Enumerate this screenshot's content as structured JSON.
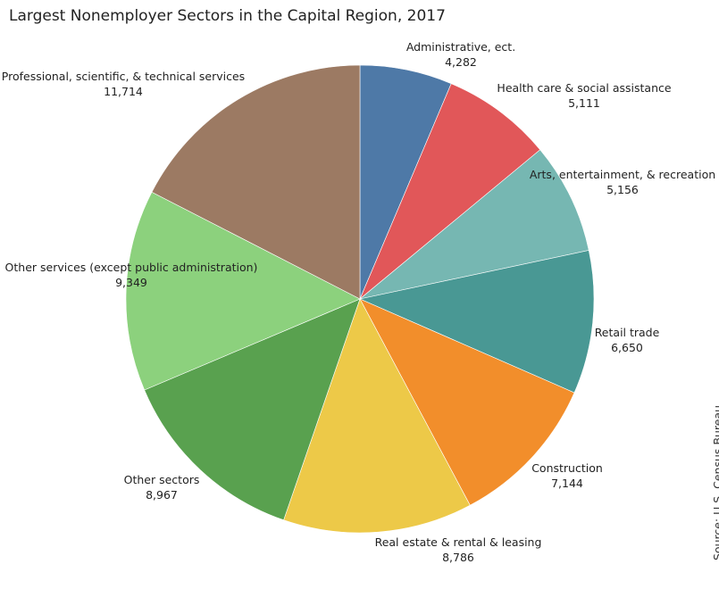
{
  "chart_data": {
    "type": "pie",
    "title": "Largest Nonemployer Sectors in the Capital Region, 2017",
    "source": "Source: U.S. Census Bureau",
    "slices": [
      {
        "name": "Administrative, ect.",
        "value": 4282,
        "value_label": "4,282",
        "color": "#4e79a7"
      },
      {
        "name": "Health care & social assistance",
        "value": 5111,
        "value_label": "5,111",
        "color": "#e15759"
      },
      {
        "name": "Arts, entertainment, & recreation",
        "value": 5156,
        "value_label": "5,156",
        "color": "#76b7b2"
      },
      {
        "name": "Retail trade",
        "value": 6650,
        "value_label": "6,650",
        "color": "#499894"
      },
      {
        "name": "Construction",
        "value": 7144,
        "value_label": "7,144",
        "color": "#f28e2b"
      },
      {
        "name": "Real estate & rental & leasing",
        "value": 8786,
        "value_label": "8,786",
        "color": "#edc948"
      },
      {
        "name": "Other sectors",
        "value": 8967,
        "value_label": "8,967",
        "color": "#59a14f"
      },
      {
        "name": "Other services (except public administration)",
        "value": 9349,
        "value_label": "9,349",
        "color": "#8cd17d"
      },
      {
        "name": "Professional, scientific, & technical services",
        "value": 11714,
        "value_label": "11,714",
        "color": "#9c7a63"
      }
    ]
  }
}
